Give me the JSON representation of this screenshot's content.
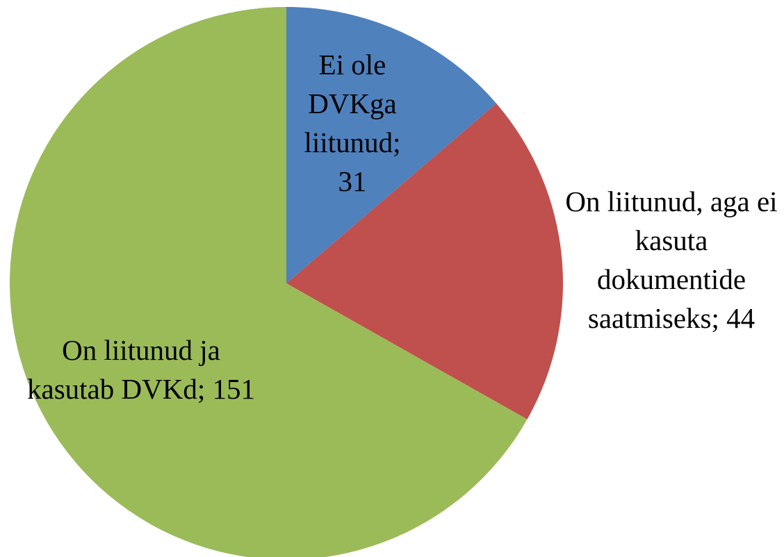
{
  "chart_data": {
    "type": "pie",
    "values": [
      31,
      44,
      151
    ],
    "value_labels": [
      "Ei ole DVKga liitunud; 31",
      "On liitunud, aga ei kasuta dokumentide saatmiseks; 44",
      "On liitunud ja kasutab DVKd; 151"
    ],
    "colors": [
      "#4f81bd",
      "#c0504d",
      "#9bbb59"
    ]
  }
}
